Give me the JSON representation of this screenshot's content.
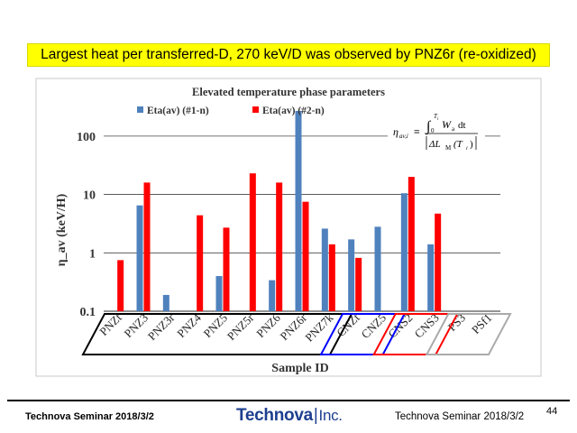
{
  "slide": {
    "headline": "Largest heat per transferred-D, 270 keV/D was observed by PNZ6r (re-oxidized)"
  },
  "footer": {
    "left_text": "Technova Seminar 2018/3/2",
    "logo_main": "Technova",
    "logo_inc": "Inc.",
    "right_text": "Technova Seminar 2018/3/2",
    "page_number": "44"
  },
  "chart_data": {
    "type": "bar",
    "title": "Elevated temperature phase parameters",
    "xlabel": "Sample ID",
    "ylabel": "η_av (keV/H)",
    "yscale": "log",
    "ylim": [
      0.1,
      300
    ],
    "yticks": [
      0.1,
      1,
      10,
      100
    ],
    "ytick_labels": [
      "0.1",
      "1",
      "10",
      "100"
    ],
    "grid": true,
    "legend_position": "top-left",
    "categories": [
      "PNZt",
      "PNZ3",
      "PNZ3r",
      "PNZ4",
      "PNZ5",
      "PNZ5r",
      "PNZ6",
      "PNZ6r",
      "PNZ7k",
      "CNZt",
      "CNZ5",
      "CNS2",
      "CNS3",
      "PS3",
      "PSf1"
    ],
    "series": [
      {
        "name": "Eta(av) (#1-n)",
        "color": "#4f81bd",
        "values": [
          null,
          6.5,
          0.19,
          null,
          0.4,
          null,
          0.34,
          270,
          2.6,
          1.7,
          2.8,
          10.5,
          1.4,
          null,
          null
        ]
      },
      {
        "name": "Eta(av) (#2-n)",
        "color": "#ff0000",
        "values": [
          0.75,
          16,
          null,
          4.4,
          2.7,
          23,
          16,
          7.5,
          1.4,
          0.82,
          null,
          20,
          4.7,
          null,
          null
        ]
      }
    ],
    "groups": [
      {
        "color": "#000000",
        "from": 0,
        "to": 8
      },
      {
        "color": "#0000ff",
        "from": 9,
        "to": 10
      },
      {
        "color": "#ff0000",
        "from": 11,
        "to": 12
      },
      {
        "color": "#aaaaaa",
        "from": 13,
        "to": 14
      }
    ],
    "equation": {
      "lhs": "η",
      "lhs_sub": "av,i",
      "op": "≡",
      "integral_upper": "T",
      "integral_upper_sub": "i",
      "integral_lower": "0",
      "numerator_var": "W",
      "numerator_sub": "a",
      "numerator_d": "dt",
      "denominator": "ΔL",
      "denominator_sub": "M",
      "denominator_arg": "(T",
      "denominator_arg_sub": "i",
      "denominator_close": ")"
    }
  }
}
